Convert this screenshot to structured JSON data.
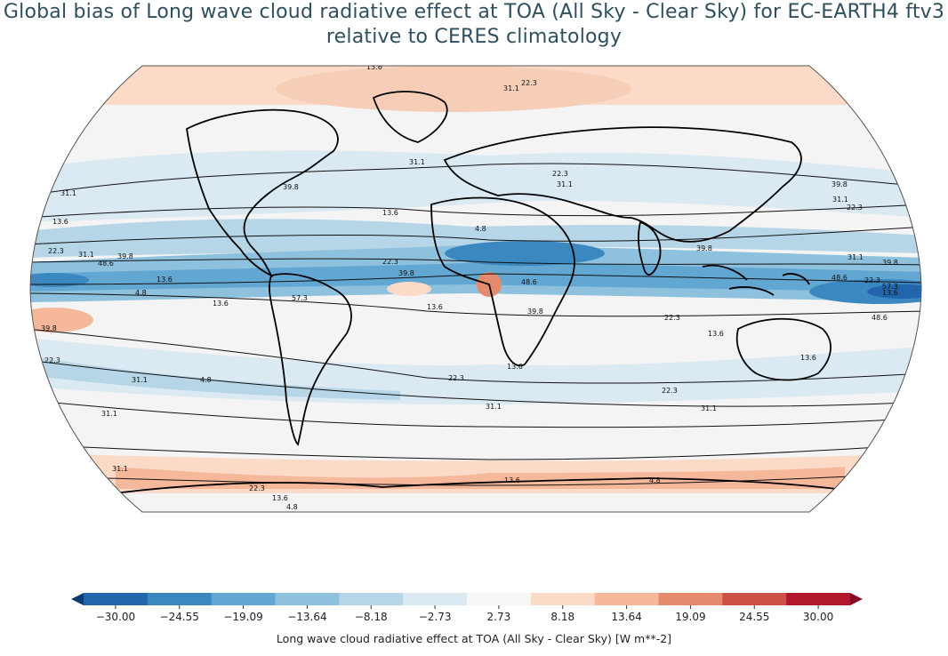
{
  "title": {
    "line1": "Global bias of Long wave cloud radiative effect at TOA (All Sky - Clear Sky) for EC-EARTH4 ftv3",
    "line2": "relative to CERES climatology"
  },
  "colorbar": {
    "label": "Long wave cloud radiative effect at TOA (All Sky - Clear Sky) [W m**-2]",
    "ticks": [
      "−30.00",
      "−24.55",
      "−19.09",
      "−13.64",
      "−8.18",
      "−2.73",
      "2.73",
      "8.18",
      "13.64",
      "19.09",
      "24.55",
      "30.00"
    ],
    "colors": [
      "#2166ac",
      "#3b87c0",
      "#62a6d2",
      "#8dc1dd",
      "#b6d6e8",
      "#dbe9f2",
      "#f7f7f7",
      "#fbdbc8",
      "#f6b89b",
      "#e58a6d",
      "#cd5146",
      "#b2182b"
    ],
    "extend_low_color": "#0d3a75",
    "extend_high_color": "#8b0a23"
  },
  "contour_labels": [
    "13.6",
    "22.3",
    "31.1",
    "31.1",
    "22.3",
    "31.1",
    "39.8",
    "31.1",
    "39.8",
    "13.6",
    "13.6",
    "22.3",
    "31.1",
    "39.8",
    "48.6",
    "22.3",
    "13.6",
    "4.8",
    "39.8",
    "13.6",
    "39.8",
    "22.3",
    "4.8",
    "31.1",
    "31.1",
    "13.6",
    "48.6",
    "39.8",
    "57.3",
    "13.6",
    "22.3",
    "22.3",
    "13.6",
    "31.1",
    "22.3",
    "31.1",
    "39.8",
    "31.1",
    "22.3",
    "39.8",
    "48.6",
    "57.3",
    "13.6",
    "22.3",
    "13.6",
    "48.6",
    "31.1",
    "4.8",
    "13.6",
    "31.1",
    "4.8",
    "13.6",
    "4.8",
    "22.3"
  ]
}
